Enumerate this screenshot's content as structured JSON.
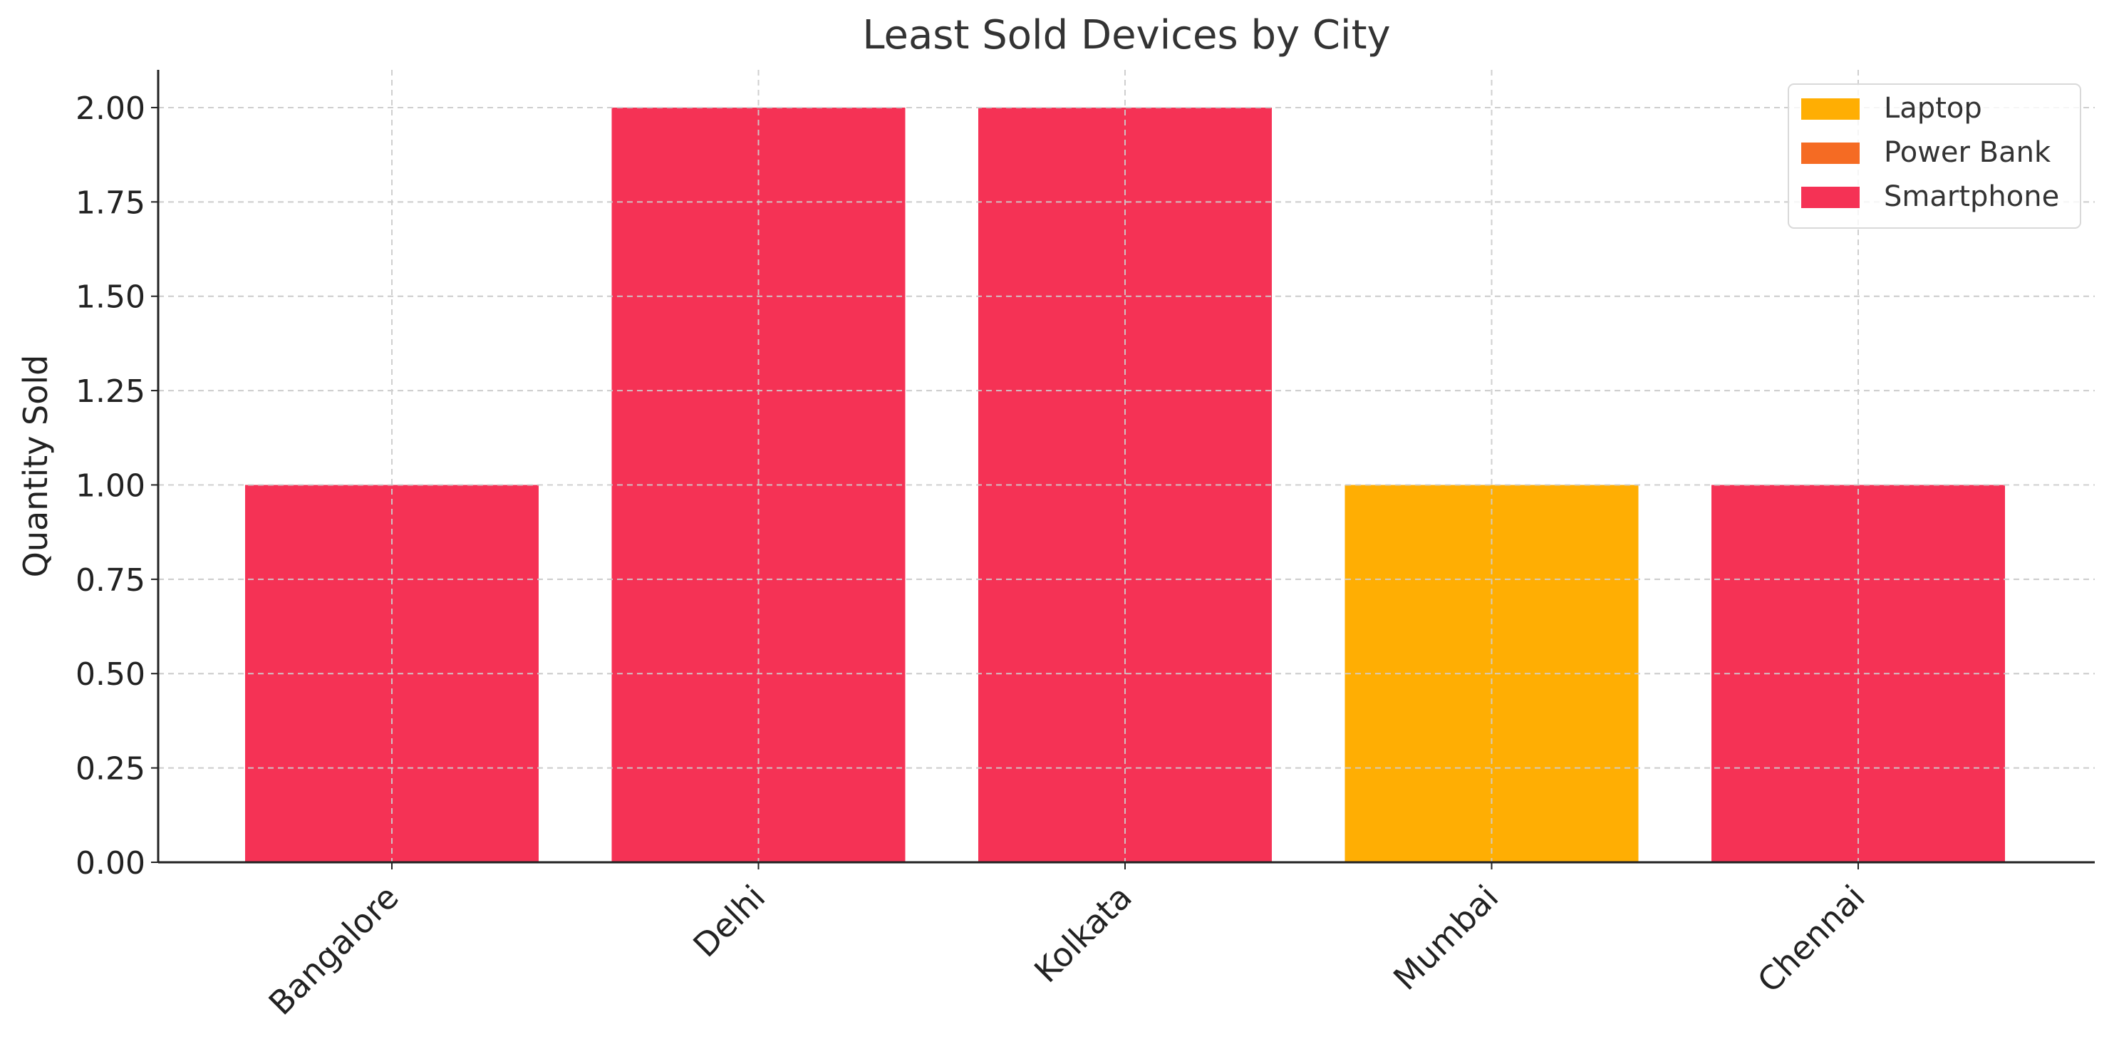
{
  "chart_data": {
    "type": "bar",
    "title": "Least Sold Devices by City",
    "xlabel": "",
    "ylabel": "Quantity Sold",
    "categories": [
      "Bangalore",
      "Delhi",
      "Kolkata",
      "Mumbai",
      "Chennai"
    ],
    "values": [
      1,
      2,
      2,
      1,
      1
    ],
    "devices": [
      "Smartphone",
      "Smartphone",
      "Smartphone",
      "Laptop",
      "Smartphone"
    ],
    "ylim": [
      0,
      2.1
    ],
    "yticks": [
      0,
      0.25,
      0.5,
      0.75,
      1.0,
      1.25,
      1.5,
      1.75,
      2.0
    ],
    "ytick_labels": [
      "0.00",
      "0.25",
      "0.50",
      "0.75",
      "1.00",
      "1.25",
      "1.50",
      "1.75",
      "2.00"
    ],
    "grid": true,
    "legend_position": "top-right",
    "legend": [
      {
        "name": "Laptop",
        "color": "#FFAE03"
      },
      {
        "name": "Power Bank",
        "color": "#F56B23"
      },
      {
        "name": "Smartphone",
        "color": "#F53255"
      }
    ]
  }
}
